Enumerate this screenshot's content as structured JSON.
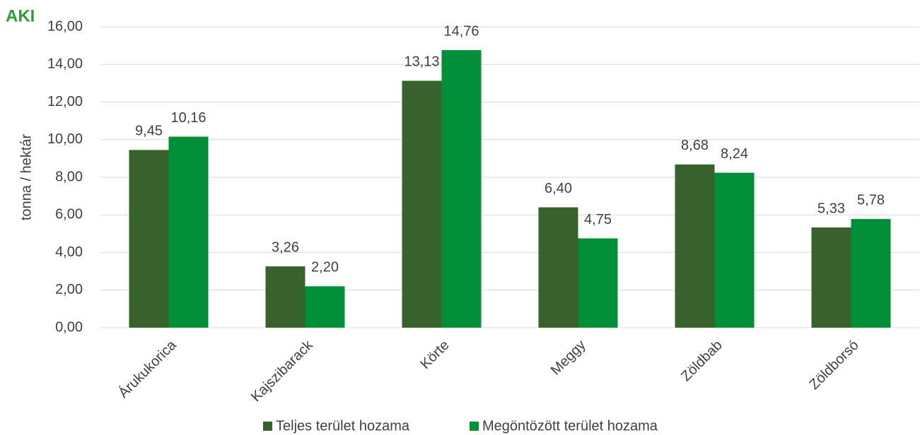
{
  "logo": "AKI",
  "chart_data": {
    "type": "bar",
    "y_label": "tonna / hektár",
    "categories": [
      "Árukukorica",
      "Kajszibarack",
      "Körte",
      "Meggy",
      "Zöldbab",
      "Zöldborsó"
    ],
    "series": [
      {
        "name": "Teljes terület hozama",
        "color": "#37622c",
        "values": [
          9.45,
          3.26,
          13.13,
          6.4,
          8.68,
          5.33
        ],
        "value_labels": [
          "9,45",
          "3,26",
          "13,13",
          "6,40",
          "8,68",
          "5,33"
        ]
      },
      {
        "name": "Megöntözött terület hozama",
        "color": "#008f39",
        "values": [
          10.16,
          2.2,
          14.76,
          4.75,
          8.24,
          5.78
        ],
        "value_labels": [
          "10,16",
          "2,20",
          "14,76",
          "4,75",
          "8,24",
          "5,78"
        ]
      }
    ],
    "ylim": [
      0,
      16
    ],
    "yticks": [
      {
        "value": 0,
        "label": "0,00"
      },
      {
        "value": 2,
        "label": "2,00"
      },
      {
        "value": 4,
        "label": "4,00"
      },
      {
        "value": 6,
        "label": "6,00"
      },
      {
        "value": 8,
        "label": "8,00"
      },
      {
        "value": 10,
        "label": "10,00"
      },
      {
        "value": 12,
        "label": "12,00"
      },
      {
        "value": 14,
        "label": "14,00"
      },
      {
        "value": 16,
        "label": "16,00"
      }
    ],
    "grid": true,
    "legend": "bottom"
  }
}
